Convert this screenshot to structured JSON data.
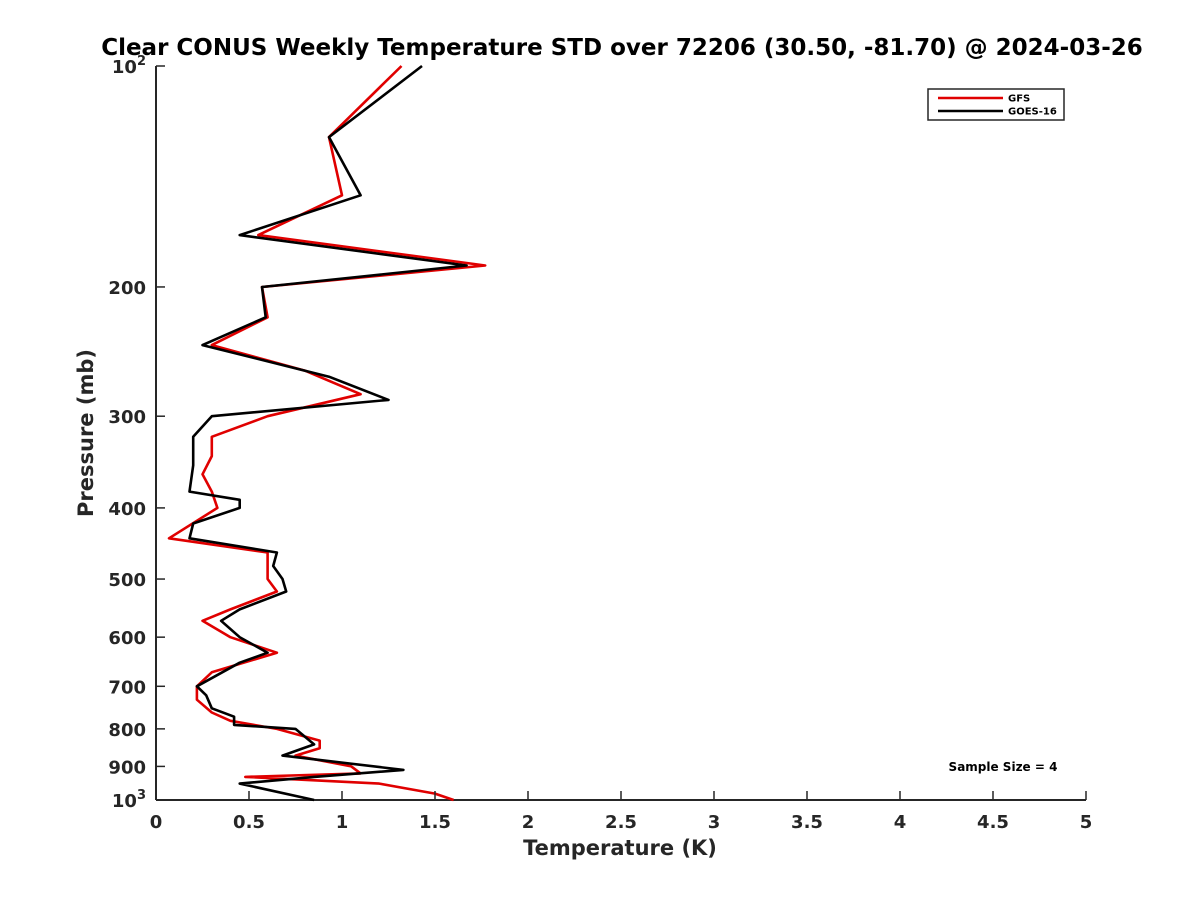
{
  "chart_data": {
    "type": "line",
    "title": "Clear CONUS Weekly Temperature STD over 72206 (30.50, -81.70) @ 2024-03-26",
    "xlabel": "Temperature (K)",
    "ylabel": "Pressure (mb)",
    "xlim": [
      0,
      5
    ],
    "ylim": [
      100,
      1000
    ],
    "y_scale": "log",
    "y_reversed": true,
    "x_ticks": [
      "0",
      "0.5",
      "1",
      "1.5",
      "2",
      "2.5",
      "3",
      "3.5",
      "4",
      "4.5",
      "5"
    ],
    "y_ticks": [
      {
        "value": 100,
        "label": "10",
        "sup": "2"
      },
      {
        "value": 200,
        "label": "200",
        "sup": ""
      },
      {
        "value": 300,
        "label": "300",
        "sup": ""
      },
      {
        "value": 400,
        "label": "400",
        "sup": ""
      },
      {
        "value": 500,
        "label": "500",
        "sup": ""
      },
      {
        "value": 600,
        "label": "600",
        "sup": ""
      },
      {
        "value": 700,
        "label": "700",
        "sup": ""
      },
      {
        "value": 800,
        "label": "800",
        "sup": ""
      },
      {
        "value": 900,
        "label": "900",
        "sup": ""
      },
      {
        "value": 1000,
        "label": "10",
        "sup": "3"
      }
    ],
    "grid": false,
    "legend_position": "top-right",
    "annotation": "Sample Size = 4",
    "series": [
      {
        "name": "GFS",
        "color": "#e00000",
        "points": [
          [
            1.32,
            100
          ],
          [
            0.93,
            125
          ],
          [
            1.0,
            150
          ],
          [
            0.55,
            170
          ],
          [
            1.77,
            187
          ],
          [
            0.57,
            200
          ],
          [
            0.6,
            220
          ],
          [
            0.3,
            240
          ],
          [
            0.8,
            260
          ],
          [
            1.1,
            280
          ],
          [
            0.6,
            300
          ],
          [
            0.3,
            320
          ],
          [
            0.3,
            340
          ],
          [
            0.25,
            360
          ],
          [
            0.3,
            380
          ],
          [
            0.33,
            400
          ],
          [
            0.07,
            440
          ],
          [
            0.6,
            460
          ],
          [
            0.6,
            480
          ],
          [
            0.6,
            500
          ],
          [
            0.65,
            520
          ],
          [
            0.4,
            550
          ],
          [
            0.25,
            570
          ],
          [
            0.4,
            600
          ],
          [
            0.65,
            630
          ],
          [
            0.3,
            670
          ],
          [
            0.22,
            700
          ],
          [
            0.22,
            730
          ],
          [
            0.3,
            760
          ],
          [
            0.4,
            780
          ],
          [
            0.65,
            800
          ],
          [
            0.88,
            830
          ],
          [
            0.88,
            850
          ],
          [
            0.75,
            870
          ],
          [
            1.05,
            900
          ],
          [
            1.1,
            920
          ],
          [
            0.48,
            930
          ],
          [
            1.2,
            950
          ],
          [
            1.5,
            980
          ],
          [
            1.6,
            1000
          ]
        ]
      },
      {
        "name": "GOES-16",
        "color": "#000000",
        "points": [
          [
            1.43,
            100
          ],
          [
            0.93,
            125
          ],
          [
            1.1,
            150
          ],
          [
            0.45,
            170
          ],
          [
            1.67,
            187
          ],
          [
            0.57,
            200
          ],
          [
            0.59,
            220
          ],
          [
            0.25,
            240
          ],
          [
            0.93,
            265
          ],
          [
            1.25,
            285
          ],
          [
            0.3,
            300
          ],
          [
            0.2,
            320
          ],
          [
            0.2,
            350
          ],
          [
            0.18,
            380
          ],
          [
            0.45,
            390
          ],
          [
            0.45,
            400
          ],
          [
            0.2,
            420
          ],
          [
            0.18,
            440
          ],
          [
            0.65,
            460
          ],
          [
            0.63,
            480
          ],
          [
            0.68,
            500
          ],
          [
            0.7,
            520
          ],
          [
            0.45,
            550
          ],
          [
            0.35,
            570
          ],
          [
            0.45,
            600
          ],
          [
            0.6,
            630
          ],
          [
            0.45,
            650
          ],
          [
            0.22,
            700
          ],
          [
            0.27,
            720
          ],
          [
            0.3,
            750
          ],
          [
            0.42,
            770
          ],
          [
            0.42,
            790
          ],
          [
            0.75,
            800
          ],
          [
            0.85,
            840
          ],
          [
            0.68,
            870
          ],
          [
            1.33,
            910
          ],
          [
            0.85,
            930
          ],
          [
            0.45,
            950
          ],
          [
            0.85,
            1000
          ]
        ]
      }
    ]
  }
}
